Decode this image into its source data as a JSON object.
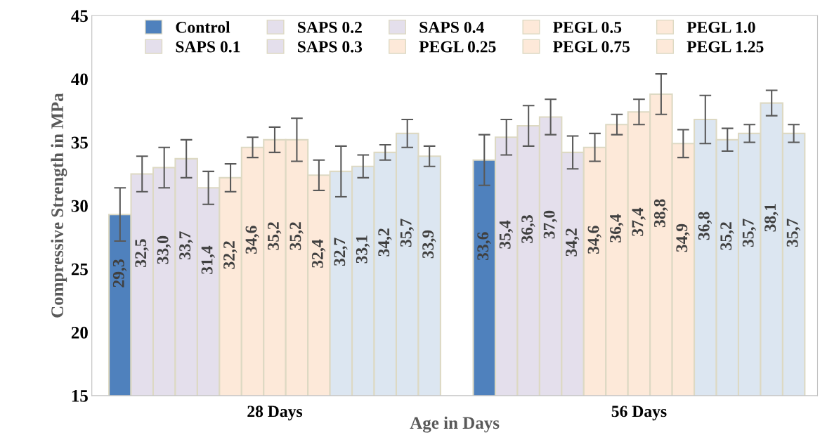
{
  "chart_data": {
    "type": "bar",
    "xlabel": "Age in Days",
    "ylabel": "Compressive Strength in MPa",
    "categories": [
      "28 Days",
      "56 Days"
    ],
    "ylim": [
      15,
      45
    ],
    "yticks": [
      15,
      20,
      25,
      30,
      35,
      40,
      45
    ],
    "grid": false,
    "legend": "top",
    "series": [
      {
        "name": "Control",
        "color": "#4f81bd",
        "values": [
          29.3,
          33.6
        ],
        "errors": [
          2.1,
          2.0
        ],
        "value_labels": [
          "29,3",
          "33,6"
        ]
      },
      {
        "name": "SAPS 0.1",
        "color": "#e4dfec",
        "values": [
          32.5,
          35.4
        ],
        "errors": [
          1.4,
          1.4
        ],
        "value_labels": [
          "32,5",
          "35,4"
        ]
      },
      {
        "name": "SAPS 0.2",
        "color": "#e4dfec",
        "values": [
          33.0,
          36.3
        ],
        "errors": [
          1.6,
          1.6
        ],
        "value_labels": [
          "33,0",
          "36,3"
        ]
      },
      {
        "name": "SAPS 0.3",
        "color": "#e4dfec",
        "values": [
          33.7,
          37.0
        ],
        "errors": [
          1.5,
          1.4
        ],
        "value_labels": [
          "33,7",
          "37,0"
        ]
      },
      {
        "name": "SAPS 0.4",
        "color": "#e4dfec",
        "values": [
          31.4,
          34.2
        ],
        "errors": [
          1.3,
          1.3
        ],
        "value_labels": [
          "31,4",
          "34,2"
        ]
      },
      {
        "name": "PEGL 0.25",
        "color": "#fde9d9",
        "values": [
          32.2,
          34.6
        ],
        "errors": [
          1.1,
          1.1
        ],
        "value_labels": [
          "32,2",
          "34,6"
        ]
      },
      {
        "name": "PEGL 0.5",
        "color": "#fde9d9",
        "values": [
          34.6,
          36.4
        ],
        "errors": [
          0.8,
          0.8
        ],
        "value_labels": [
          "34,6",
          "36,4"
        ]
      },
      {
        "name": "PEGL 0.75",
        "color": "#fde9d9",
        "values": [
          35.2,
          37.4
        ],
        "errors": [
          1.0,
          1.0
        ],
        "value_labels": [
          "35,2",
          "37,4"
        ]
      },
      {
        "name": "PEGL 1.0",
        "color": "#fde9d9",
        "values": [
          35.2,
          38.8
        ],
        "errors": [
          1.7,
          1.6
        ],
        "value_labels": [
          "35,2",
          "38,8"
        ]
      },
      {
        "name": "PEGL 1.25",
        "color": "#fde9d9",
        "values": [
          32.4,
          34.9
        ],
        "errors": [
          1.2,
          1.1
        ],
        "value_labels": [
          "32,4",
          "34,9"
        ]
      },
      {
        "color": "#dce6f1",
        "values": [
          32.7,
          36.8
        ],
        "errors": [
          2.0,
          1.9
        ],
        "value_labels": [
          "32,7",
          "36,8"
        ]
      },
      {
        "color": "#dce6f1",
        "values": [
          33.1,
          35.2
        ],
        "errors": [
          0.9,
          0.9
        ],
        "value_labels": [
          "33,1",
          "35,2"
        ]
      },
      {
        "color": "#dce6f1",
        "values": [
          34.2,
          35.7
        ],
        "errors": [
          0.6,
          0.7
        ],
        "value_labels": [
          "34,2",
          "35,7"
        ]
      },
      {
        "color": "#dce6f1",
        "values": [
          35.7,
          38.1
        ],
        "errors": [
          1.1,
          1.0
        ],
        "value_labels": [
          "35,7",
          "38,1"
        ]
      },
      {
        "color": "#dce6f1",
        "values": [
          33.9,
          35.7
        ],
        "errors": [
          0.8,
          0.7
        ],
        "value_labels": [
          "33,9",
          "35,7"
        ]
      }
    ]
  }
}
